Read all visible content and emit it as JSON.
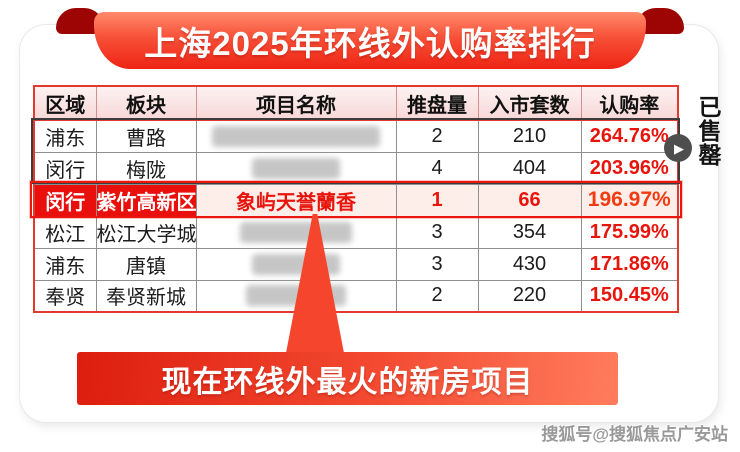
{
  "banner": {
    "title": "上海2025年环线外认购率排行"
  },
  "table": {
    "headers": [
      "区域",
      "板块",
      "项目名称",
      "推盘量",
      "入市套数",
      "认购率"
    ],
    "rows": [
      {
        "region": "浦东",
        "block": "曹路",
        "project": "",
        "project_redacted": true,
        "redact_width": 168,
        "launches": "2",
        "units": "210",
        "rate": "264.76%",
        "highlight": false
      },
      {
        "region": "闵行",
        "block": "梅陇",
        "project": "",
        "project_redacted": true,
        "redact_width": 88,
        "launches": "4",
        "units": "404",
        "rate": "203.96%",
        "highlight": false
      },
      {
        "region": "闵行",
        "block": "紫竹高新区",
        "project": "象屿天誉蘭香",
        "project_redacted": false,
        "redact_width": 0,
        "launches": "1",
        "units": "66",
        "rate": "196.97%",
        "highlight": true
      },
      {
        "region": "松江",
        "block": "松江大学城",
        "project": "",
        "project_redacted": true,
        "redact_width": 112,
        "launches": "3",
        "units": "354",
        "rate": "175.99%",
        "highlight": false
      },
      {
        "region": "浦东",
        "block": "唐镇",
        "project": "",
        "project_redacted": true,
        "redact_width": 88,
        "launches": "3",
        "units": "430",
        "rate": "171.86%",
        "highlight": false
      },
      {
        "region": "奉贤",
        "block": "奉贤新城",
        "project": "",
        "project_redacted": true,
        "redact_width": 100,
        "launches": "2",
        "units": "220",
        "rate": "150.45%",
        "highlight": false
      }
    ]
  },
  "callout": {
    "label": "现在环线外最火的新房项目"
  },
  "side": {
    "sold_out": "已售罄",
    "play_glyph": "▶"
  },
  "watermark": {
    "text": "搜狐号@搜狐焦点广安站"
  },
  "colors": {
    "banner_red": "#ee2414",
    "fold_dark_red": "#9d0505",
    "table_border_red": "#e4382e",
    "header_bg_pink": "#f8d7d7",
    "highlight_cell_red": "#e90f0c",
    "highlight_row_pink": "#fdeee9",
    "rate_red": "#e8150d",
    "highlight_rate_orange": "#f23b10",
    "pointer_red": "#f5452c",
    "group_frame_black": "#3c3c3c",
    "play_circle_gray": "#4e4e4e"
  },
  "chart_data": {
    "type": "table",
    "title": "上海2025年环线外认购率排行",
    "columns": [
      "区域",
      "板块",
      "项目名称",
      "推盘量",
      "入市套数",
      "认购率"
    ],
    "rows": [
      [
        "浦东",
        "曹路",
        "(已打码)",
        2,
        210,
        "264.76%"
      ],
      [
        "闵行",
        "梅陇",
        "(已打码)",
        4,
        404,
        "203.96%"
      ],
      [
        "闵行",
        "紫竹高新区",
        "象屿天誉蘭香",
        1,
        66,
        "196.97%"
      ],
      [
        "松江",
        "松江大学城",
        "(已打码)",
        3,
        354,
        "175.99%"
      ],
      [
        "浦东",
        "唐镇",
        "(已打码)",
        3,
        430,
        "171.86%"
      ],
      [
        "奉贤",
        "奉贤新城",
        "(已打码)",
        2,
        220,
        "150.45%"
      ]
    ],
    "highlighted_row_index": 2,
    "annotations": [
      "现在环线外最火的新房项目",
      "已售罄"
    ]
  }
}
